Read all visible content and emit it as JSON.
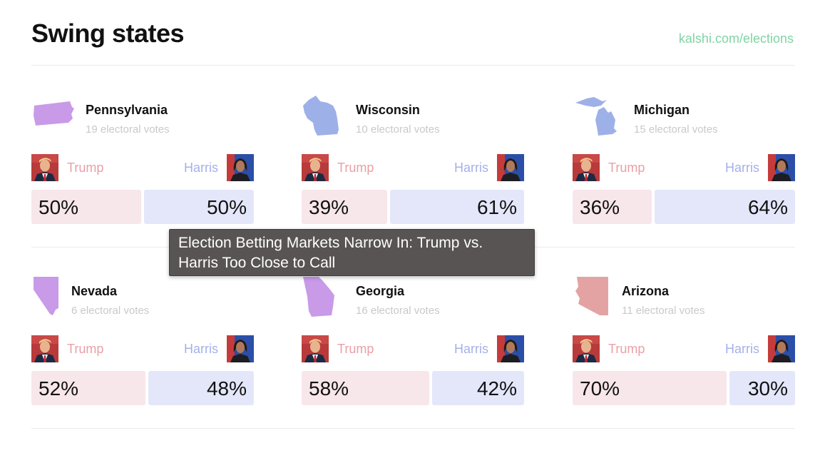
{
  "header": {
    "title": "Swing states",
    "link": "kalshi.com/elections"
  },
  "candidate_labels": {
    "left": "Trump",
    "right": "Harris"
  },
  "colors": {
    "trump_bar": "#f7e6ea",
    "harris_bar": "#e4e7fa",
    "link": "#7fd4a4"
  },
  "states": [
    {
      "name": "Pennsylvania",
      "votes": "19 electoral votes",
      "trump": "50%",
      "harris": "50%",
      "trump_share": 50,
      "shape_color": "#c89ae8",
      "shape_icon": "pennsylvania-map-icon"
    },
    {
      "name": "Wisconsin",
      "votes": "10 electoral votes",
      "trump": "39%",
      "harris": "61%",
      "trump_share": 39,
      "shape_color": "#9eb0e8",
      "shape_icon": "wisconsin-map-icon"
    },
    {
      "name": "Michigan",
      "votes": "15 electoral votes",
      "trump": "36%",
      "harris": "64%",
      "trump_share": 36,
      "shape_color": "#9eb0e8",
      "shape_icon": "michigan-map-icon"
    },
    {
      "name": "Nevada",
      "votes": "6 electoral votes",
      "trump": "52%",
      "harris": "48%",
      "trump_share": 52,
      "shape_color": "#c89ae8",
      "shape_icon": "nevada-map-icon"
    },
    {
      "name": "Georgia",
      "votes": "16 electoral votes",
      "trump": "58%",
      "harris": "42%",
      "trump_share": 58,
      "shape_color": "#c89ae8",
      "shape_icon": "georgia-map-icon"
    },
    {
      "name": "Arizona",
      "votes": "11 electoral votes",
      "trump": "70%",
      "harris": "30%",
      "trump_share": 70,
      "shape_color": "#e4a3a3",
      "shape_icon": "arizona-map-icon"
    }
  ],
  "tooltip": {
    "text": "Election Betting Markets Narrow In: Trump vs. Harris Too Close to Call"
  }
}
